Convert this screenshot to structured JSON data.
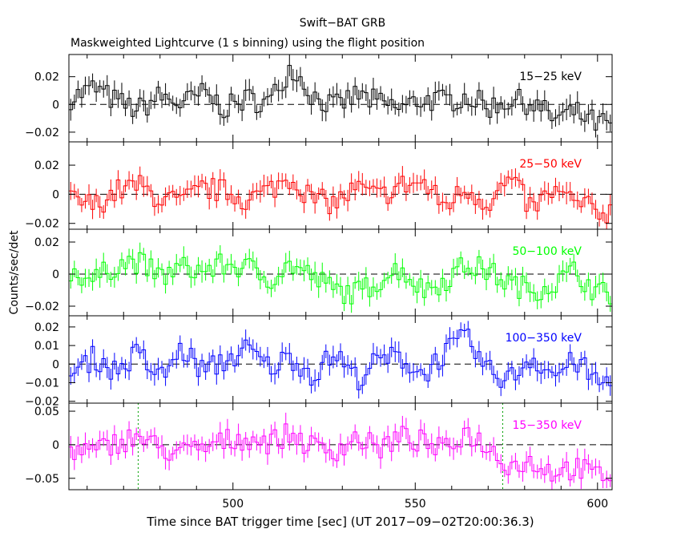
{
  "chart_data": {
    "type": "line",
    "title": "Swift−BAT GRB",
    "subtitle": "Maskweighted Lightcurve (1 s binning) using the flight position",
    "xlabel": "Time since BAT trigger time [sec] (UT 2017−09−02T20:00:36.3)",
    "ylabel": "Counts/sec/det",
    "xlim": [
      455,
      604
    ],
    "x_ticks": [
      500,
      550,
      600
    ],
    "x_tick_labels": [
      "500",
      "550",
      "600"
    ],
    "reference_lines": {
      "y_dashed": 0,
      "x_dotted_vertical": [
        474,
        574
      ]
    },
    "grid": false,
    "legend": "none; each band labelled in the top-right of its panel",
    "series": [
      {
        "name": "15−25 keV",
        "color": "#000000",
        "ylim": [
          -0.027,
          0.036
        ],
        "y_ticks": [
          -0.02,
          0,
          0.02
        ],
        "y_tick_labels": [
          "−0.02",
          "0",
          "0.02"
        ],
        "x": [
          456,
          462,
          468,
          474,
          480,
          486,
          492,
          498,
          504,
          510,
          516,
          522,
          528,
          534,
          540,
          546,
          552,
          558,
          564,
          570,
          576,
          582,
          588,
          594,
          600
        ],
        "values": [
          0.005,
          0.012,
          0.002,
          -0.004,
          0.006,
          0.0,
          0.008,
          -0.003,
          0.004,
          0.001,
          0.028,
          0.006,
          -0.002,
          0.007,
          0.001,
          -0.003,
          0.004,
          0.002,
          0.006,
          -0.002,
          0.003,
          0.001,
          -0.01,
          -0.006,
          -0.014
        ]
      },
      {
        "name": "25−50 keV",
        "color": "#ff0000",
        "ylim": [
          -0.024,
          0.036
        ],
        "y_ticks": [
          -0.02,
          0,
          0.02
        ],
        "y_tick_labels": [
          "−0.02",
          "0",
          "0.02"
        ],
        "x": [
          456,
          462,
          468,
          474,
          480,
          486,
          492,
          498,
          504,
          510,
          516,
          522,
          528,
          534,
          540,
          546,
          552,
          558,
          564,
          570,
          576,
          582,
          588,
          594,
          600
        ],
        "values": [
          -0.004,
          -0.008,
          0.002,
          0.006,
          -0.003,
          -0.006,
          0.004,
          0.002,
          -0.004,
          0.003,
          0.012,
          -0.004,
          -0.006,
          0.004,
          -0.002,
          0.006,
          0.008,
          -0.008,
          0.004,
          -0.006,
          0.01,
          -0.01,
          0.002,
          -0.006,
          -0.012
        ]
      },
      {
        "name": "50−100 keV",
        "color": "#00ff00",
        "ylim": [
          -0.026,
          0.028
        ],
        "y_ticks": [
          -0.02,
          0,
          0.02
        ],
        "y_tick_labels": [
          "−0.02",
          "0",
          "0.02"
        ],
        "x": [
          456,
          462,
          468,
          474,
          480,
          486,
          492,
          498,
          504,
          510,
          516,
          522,
          528,
          534,
          540,
          546,
          552,
          558,
          564,
          570,
          576,
          582,
          588,
          594,
          600
        ],
        "values": [
          0.002,
          -0.004,
          0.006,
          0.008,
          -0.002,
          0.004,
          0.002,
          0.006,
          0.004,
          -0.003,
          0.006,
          -0.002,
          -0.01,
          -0.012,
          -0.004,
          0.004,
          -0.01,
          -0.004,
          0.006,
          0.002,
          -0.006,
          -0.01,
          -0.006,
          0.002,
          -0.012
        ]
      },
      {
        "name": "100−350 keV",
        "color": "#0000ff",
        "ylim": [
          -0.021,
          0.026
        ],
        "y_ticks": [
          -0.02,
          -0.01,
          0,
          0.01,
          0.02
        ],
        "y_tick_labels": [
          "−0.02",
          "−0.01",
          "0",
          "0.01",
          "0.02"
        ],
        "x": [
          456,
          462,
          468,
          474,
          480,
          486,
          492,
          498,
          504,
          510,
          516,
          522,
          528,
          534,
          540,
          546,
          552,
          558,
          564,
          570,
          576,
          582,
          588,
          594,
          600
        ],
        "values": [
          -0.006,
          0.004,
          -0.004,
          0.006,
          -0.008,
          0.008,
          -0.004,
          0.002,
          0.008,
          -0.002,
          0.004,
          -0.006,
          0.006,
          -0.008,
          0.002,
          0.004,
          -0.006,
          0.006,
          0.014,
          -0.004,
          -0.008,
          0.004,
          -0.006,
          0.002,
          -0.01
        ]
      },
      {
        "name": "15−350 keV",
        "color": "#ff00ff",
        "ylim": [
          -0.067,
          0.062
        ],
        "y_ticks": [
          -0.05,
          0,
          0.05
        ],
        "y_tick_labels": [
          "−0.05",
          "0",
          "0.05"
        ],
        "x": [
          456,
          462,
          468,
          474,
          480,
          486,
          492,
          498,
          504,
          510,
          516,
          522,
          528,
          534,
          540,
          546,
          552,
          558,
          564,
          570,
          576,
          582,
          588,
          594,
          600
        ],
        "values": [
          -0.006,
          -0.012,
          0.004,
          0.012,
          -0.006,
          -0.012,
          -0.006,
          0.006,
          0.01,
          0.004,
          0.016,
          -0.004,
          -0.008,
          0.01,
          -0.006,
          0.012,
          0.004,
          -0.01,
          0.02,
          -0.004,
          -0.03,
          -0.026,
          -0.04,
          -0.034,
          -0.046
        ]
      }
    ]
  }
}
